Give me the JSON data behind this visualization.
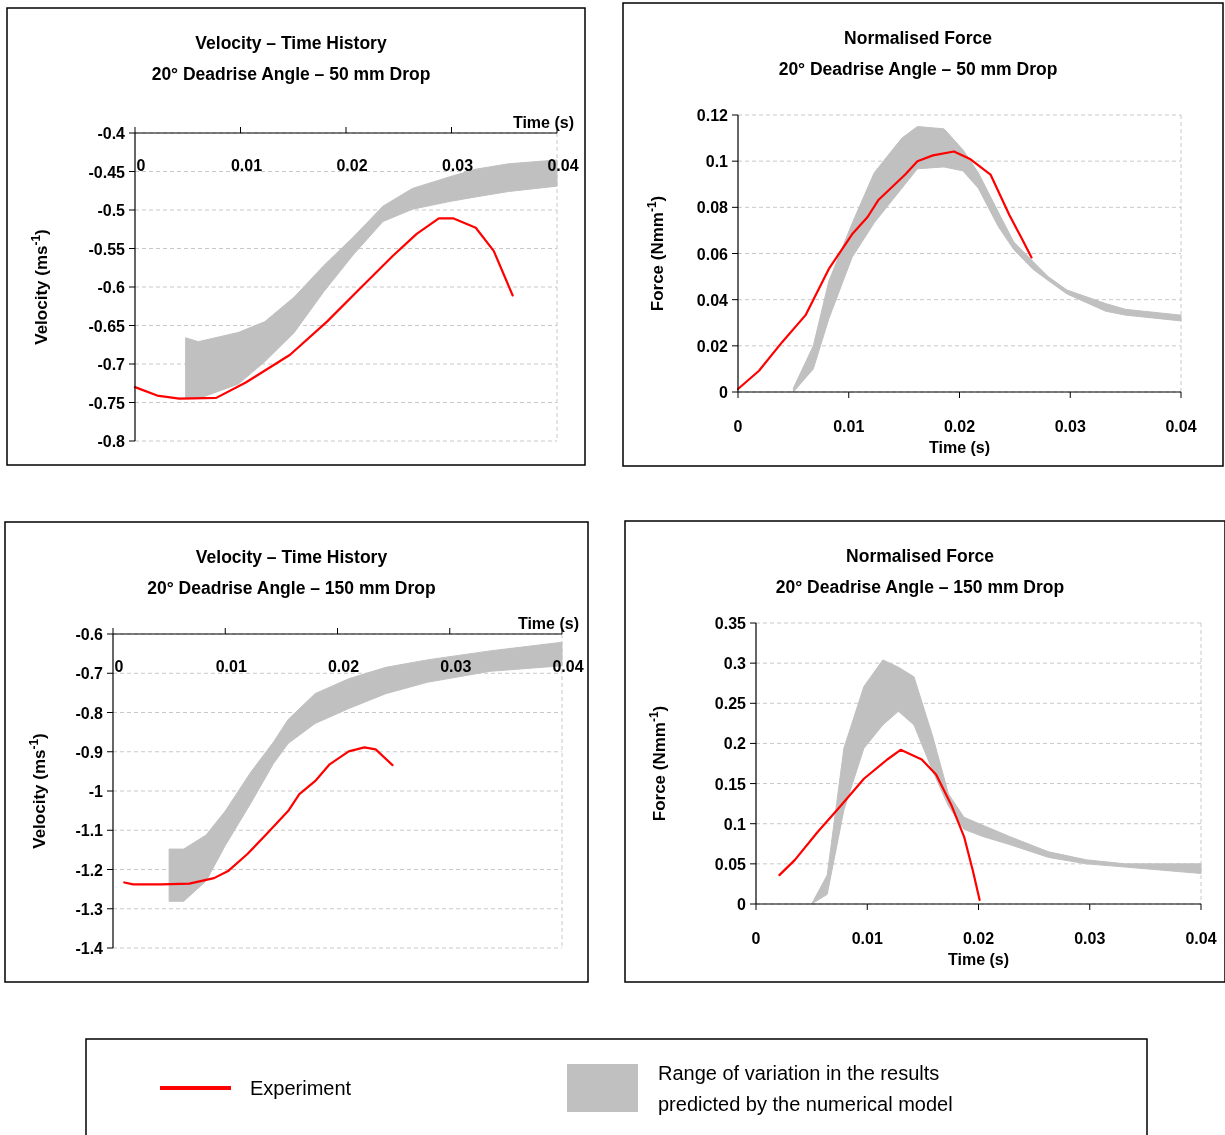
{
  "chart_data": [
    {
      "type": "line",
      "title": "Velocity – Time History",
      "subtitle": "20° Deadrise Angle – 50 mm Drop",
      "xlabel": "Time (s)",
      "ylabel": "Velocity (ms$^{-1}$)",
      "xlim": [
        0,
        0.04
      ],
      "ylim": [
        -0.8,
        -0.4
      ],
      "xticks": [
        0,
        0.01,
        0.02,
        0.03,
        0.04
      ],
      "yticks": [
        -0.4,
        -0.45,
        -0.5,
        -0.55,
        -0.6,
        -0.65,
        -0.7,
        -0.75,
        -0.8
      ],
      "grid": "y",
      "series": [
        {
          "type": "area",
          "color": "#c0c0c0",
          "x": [
            0.0048,
            0.006,
            0.0098,
            0.0123,
            0.0151,
            0.0179,
            0.0207,
            0.0235,
            0.0263,
            0.0298,
            0.0323,
            0.0354,
            0.04
          ],
          "values": [
            null,
            null,
            null,
            null,
            null,
            null,
            null,
            null,
            null,
            null,
            null,
            null,
            null
          ],
          "upper": [
            -0.666,
            -0.671,
            -0.659,
            -0.645,
            -0.613,
            -0.572,
            -0.535,
            -0.495,
            -0.472,
            -0.457,
            -0.447,
            -0.44,
            -0.435
          ],
          "lower": [
            -0.745,
            -0.745,
            -0.726,
            -0.697,
            -0.659,
            -0.606,
            -0.558,
            -0.515,
            -0.499,
            -0.489,
            -0.483,
            -0.476,
            -0.469
          ]
        },
        {
          "color": "#ff0000",
          "x": [
            0,
            0.0021,
            0.0042,
            0.0077,
            0.0105,
            0.0147,
            0.0182,
            0.0214,
            0.0244,
            0.0267,
            0.0288,
            0.0302,
            0.0323,
            0.034,
            0.0358
          ],
          "values": [
            -0.73,
            -0.741,
            -0.745,
            -0.744,
            -0.724,
            -0.688,
            -0.645,
            -0.601,
            -0.56,
            -0.531,
            -0.511,
            -0.511,
            -0.523,
            -0.553,
            -0.611
          ]
        }
      ]
    },
    {
      "type": "line",
      "title": "Normalised Force",
      "subtitle": "20° Deadrise Angle – 50 mm Drop",
      "xlabel": "Time (s)",
      "ylabel": "Force (Nmm$^{-1}$)",
      "xlim": [
        0,
        0.04
      ],
      "ylim": [
        0,
        0.12
      ],
      "xticks": [
        0,
        0.01,
        0.02,
        0.03,
        0.04
      ],
      "yticks": [
        0,
        0.02,
        0.04,
        0.06,
        0.08,
        0.1,
        0.12
      ],
      "grid": "y",
      "series": [
        {
          "type": "area",
          "color": "#c0c0c0",
          "x": [
            0.005,
            0.0068,
            0.0082,
            0.0103,
            0.0123,
            0.0148,
            0.0162,
            0.0186,
            0.0203,
            0.0217,
            0.0235,
            0.0249,
            0.0266,
            0.028,
            0.0297,
            0.0332,
            0.035,
            0.04
          ],
          "values": [
            null,
            null,
            null,
            null,
            null,
            null,
            null,
            null,
            null,
            null,
            null,
            null,
            null,
            null,
            null,
            null,
            null,
            null
          ],
          "upper": [
            0.0017,
            0.02,
            0.048,
            0.073,
            0.095,
            0.11,
            0.115,
            0.114,
            0.105,
            0.095,
            0.078,
            0.065,
            0.0567,
            0.05,
            0.0442,
            0.0383,
            0.0358,
            0.0333
          ],
          "lower": [
            0,
            0.01,
            0.0317,
            0.0583,
            0.0733,
            0.0883,
            0.0967,
            0.0975,
            0.0958,
            0.0883,
            0.0717,
            0.0617,
            0.0533,
            0.0483,
            0.0425,
            0.035,
            0.0333,
            0.0308
          ]
        },
        {
          "color": "#ff0000",
          "x": [
            0,
            0.0019,
            0.004,
            0.0061,
            0.0082,
            0.0103,
            0.0117,
            0.0127,
            0.0151,
            0.0162,
            0.0176,
            0.0195,
            0.021,
            0.0228,
            0.0245,
            0.0256,
            0.0265
          ],
          "values": [
            0.0013,
            0.0092,
            0.0217,
            0.0333,
            0.0533,
            0.0683,
            0.0758,
            0.0833,
            0.0942,
            0.1,
            0.1025,
            0.1042,
            0.1008,
            0.0942,
            0.0767,
            0.0667,
            0.0583
          ]
        }
      ]
    },
    {
      "type": "line",
      "title": "Velocity – Time History",
      "subtitle": "20° Deadrise Angle – 150 mm Drop",
      "xlabel": "Time (s)",
      "ylabel": "Velocity (ms$^{-1}$)",
      "xlim": [
        0,
        0.04
      ],
      "ylim": [
        -1.4,
        -0.6
      ],
      "xticks": [
        0,
        0.01,
        0.02,
        0.03,
        0.04
      ],
      "yticks": [
        -0.6,
        -0.7,
        -0.8,
        -0.9,
        -1,
        -1.1,
        -1.2,
        -1.3,
        -1.4
      ],
      "grid": "y",
      "series": [
        {
          "type": "area",
          "color": "#c0c0c0",
          "x": [
            0.005,
            0.0063,
            0.0083,
            0.01,
            0.0123,
            0.0143,
            0.0156,
            0.018,
            0.021,
            0.0243,
            0.028,
            0.0336,
            0.04
          ],
          "values": [
            null,
            null,
            null,
            null,
            null,
            null,
            null,
            null,
            null,
            null,
            null,
            null,
            null
          ],
          "upper": [
            -1.148,
            -1.148,
            -1.112,
            -1.051,
            -0.951,
            -0.875,
            -0.818,
            -0.752,
            -0.714,
            -0.685,
            -0.666,
            -0.643,
            -0.621
          ],
          "lower": [
            -1.281,
            -1.281,
            -1.229,
            -1.139,
            -1.03,
            -0.93,
            -0.879,
            -0.828,
            -0.79,
            -0.752,
            -0.723,
            -0.695,
            -0.681
          ]
        },
        {
          "color": "#ff0000",
          "x": [
            0.001,
            0.0018,
            0.0043,
            0.0068,
            0.009,
            0.0103,
            0.012,
            0.0136,
            0.0156,
            0.0166,
            0.018,
            0.0193,
            0.021,
            0.0224,
            0.0234,
            0.0249
          ],
          "values": [
            -1.233,
            -1.238,
            -1.238,
            -1.236,
            -1.222,
            -1.203,
            -1.16,
            -1.112,
            -1.051,
            -1.008,
            -0.975,
            -0.932,
            -0.899,
            -0.889,
            -0.894,
            -0.934
          ]
        }
      ]
    },
    {
      "type": "line",
      "title": "Normalised Force",
      "subtitle": "20° Deadrise Angle – 150 mm Drop",
      "xlabel": "Time (s)",
      "ylabel": "Force (Nmm$^{-1}$)",
      "xlim": [
        0,
        0.04
      ],
      "ylim": [
        0,
        0.35
      ],
      "xticks": [
        0,
        0.01,
        0.02,
        0.03,
        0.04
      ],
      "yticks": [
        0,
        0.05,
        0.1,
        0.15,
        0.2,
        0.25,
        0.3,
        0.35
      ],
      "grid": "y",
      "legend": "bottom",
      "series": [
        {
          "name": "Experiment",
          "color": "#ff0000",
          "x": [
            0.0021,
            0.0035,
            0.0055,
            0.0076,
            0.0097,
            0.0118,
            0.013,
            0.0149,
            0.0162,
            0.0176,
            0.0187,
            0.0195,
            0.0201
          ],
          "values": [
            0.036,
            0.055,
            0.089,
            0.122,
            0.156,
            0.18,
            0.192,
            0.18,
            0.161,
            0.122,
            0.084,
            0.041,
            0.005
          ]
        },
        {
          "name": "Range of variation in the results predicted by the numerical model",
          "type": "area",
          "color": "#c0c0c0",
          "x": [
            0.005,
            0.0064,
            0.0079,
            0.0097,
            0.0114,
            0.0128,
            0.0142,
            0.0159,
            0.0173,
            0.0187,
            0.0204,
            0.0228,
            0.0263,
            0.0297,
            0.0332,
            0.04
          ],
          "values": [
            null,
            null,
            null,
            null,
            null,
            null,
            null,
            null,
            null,
            null,
            null,
            null,
            null,
            null,
            null,
            null
          ],
          "upper": [
            0,
            0.036,
            0.194,
            0.271,
            0.304,
            0.295,
            0.283,
            0.208,
            0.137,
            0.108,
            0.098,
            0.084,
            0.065,
            0.055,
            0.05,
            0.05
          ],
          "lower": [
            0,
            0.012,
            0.117,
            0.194,
            0.223,
            0.24,
            0.223,
            0.165,
            0.122,
            0.093,
            0.084,
            0.074,
            0.058,
            0.05,
            0.046,
            0.038
          ]
        }
      ]
    }
  ]
}
